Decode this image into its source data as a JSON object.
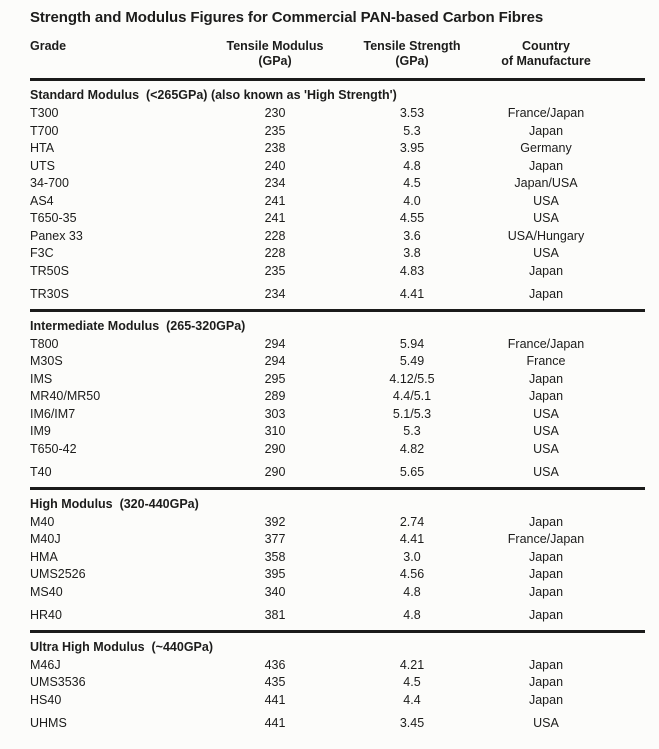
{
  "title": "Strength and Modulus Figures for Commercial PAN-based Carbon Fibres",
  "table": {
    "columns": [
      {
        "line1": "Grade",
        "line2": ""
      },
      {
        "line1": "Tensile Modulus",
        "line2": "(GPa)"
      },
      {
        "line1": "Tensile Strength",
        "line2": "(GPa)"
      },
      {
        "line1": "Country",
        "line2": "of Manufacture"
      }
    ],
    "sections": [
      {
        "header": "Standard Modulus  (<265GPa) (also known as 'High Strength')",
        "rows": [
          [
            "T300",
            "230",
            "3.53",
            "France/Japan"
          ],
          [
            "T700",
            "235",
            "5.3",
            "Japan"
          ],
          [
            "HTA",
            "238",
            "3.95",
            "Germany"
          ],
          [
            "UTS",
            "240",
            "4.8",
            "Japan"
          ],
          [
            "34-700",
            "234",
            "4.5",
            "Japan/USA"
          ],
          [
            "AS4",
            "241",
            "4.0",
            "USA"
          ],
          [
            "T650-35",
            "241",
            "4.55",
            "USA"
          ],
          [
            "Panex 33",
            "228",
            "3.6",
            "USA/Hungary"
          ],
          [
            "F3C",
            "228",
            "3.8",
            "USA"
          ],
          [
            "TR50S",
            "235",
            "4.83",
            "Japan"
          ],
          [
            "TR30S",
            "234",
            "4.41",
            "Japan"
          ]
        ]
      },
      {
        "header": "Intermediate Modulus  (265-320GPa)",
        "rows": [
          [
            "T800",
            "294",
            "5.94",
            "France/Japan"
          ],
          [
            "M30S",
            "294",
            "5.49",
            "France"
          ],
          [
            "IMS",
            "295",
            "4.12/5.5",
            "Japan"
          ],
          [
            "MR40/MR50",
            "289",
            "4.4/5.1",
            "Japan"
          ],
          [
            "IM6/IM7",
            "303",
            "5.1/5.3",
            "USA"
          ],
          [
            "IM9",
            "310",
            "5.3",
            "USA"
          ],
          [
            "T650-42",
            "290",
            "4.82",
            "USA"
          ],
          [
            "T40",
            "290",
            "5.65",
            "USA"
          ]
        ]
      },
      {
        "header": "High Modulus  (320-440GPa)",
        "rows": [
          [
            "M40",
            "392",
            "2.74",
            "Japan"
          ],
          [
            "M40J",
            "377",
            "4.41",
            "France/Japan"
          ],
          [
            "HMA",
            "358",
            "3.0",
            "Japan"
          ],
          [
            "UMS2526",
            "395",
            "4.56",
            "Japan"
          ],
          [
            "MS40",
            "340",
            "4.8",
            "Japan"
          ],
          [
            "HR40",
            "381",
            "4.8",
            "Japan"
          ]
        ]
      },
      {
        "header": "Ultra High Modulus  (~440GPa)",
        "rows": [
          [
            "M46J",
            "436",
            "4.21",
            "Japan"
          ],
          [
            "UMS3536",
            "435",
            "4.5",
            "Japan"
          ],
          [
            "HS40",
            "441",
            "4.4",
            "Japan"
          ],
          [
            "UHMS",
            "441",
            "3.45",
            "USA"
          ]
        ]
      }
    ]
  }
}
